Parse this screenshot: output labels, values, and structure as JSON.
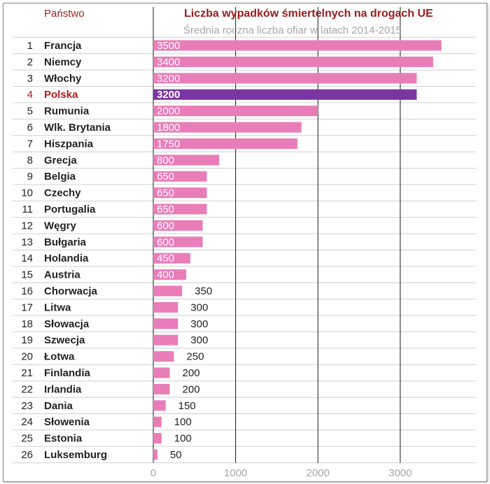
{
  "header": {
    "country_column": "Państwo"
  },
  "colors": {
    "bar": "#e97db8",
    "highlight_bar": "#7b35a3",
    "highlight_text": "#b01c1c",
    "title": "#9b1a1a",
    "subtitle": "#a6a6a6",
    "grid": "#1a1a1a",
    "row_separator": "#d0d0d0"
  },
  "chart_data": {
    "type": "bar",
    "orientation": "horizontal",
    "title": "Liczba wypadków śmiertelnych na drogach UE",
    "subtitle": "Średnia roczna liczba ofiar w latach 2014-2015",
    "highlight": "Polska",
    "categories": [
      "Francja",
      "Niemcy",
      "Włochy",
      "Polska",
      "Rumunia",
      "Wlk. Brytania",
      "Hiszpania",
      "Grecja",
      "Belgia",
      "Czechy",
      "Portugalia",
      "Węgry",
      "Bułgaria",
      "Holandia",
      "Austria",
      "Chorwacja",
      "Litwa",
      "Słowacja",
      "Szwecja",
      "Łotwa",
      "Finlandia",
      "Irlandia",
      "Dania",
      "Słowenia",
      "Estonia",
      "Luksemburg"
    ],
    "ranks": [
      "1",
      "2",
      "3",
      "4",
      "5",
      "6",
      "7",
      "8",
      "9",
      "10",
      "11",
      "12",
      "13",
      "14",
      "15",
      "16",
      "17",
      "18",
      "19",
      "20",
      "21",
      "22",
      "23",
      "24",
      "25",
      "26"
    ],
    "values": [
      3500,
      3400,
      3200,
      3200,
      2000,
      1800,
      1750,
      800,
      650,
      650,
      650,
      600,
      600,
      450,
      400,
      350,
      300,
      300,
      300,
      250,
      200,
      200,
      150,
      100,
      100,
      50
    ],
    "value_labels": [
      "3500",
      "3400",
      "3200",
      "3200",
      "2000",
      "1800",
      "1750",
      "800",
      "650",
      "650",
      "650",
      "600",
      "600",
      "450",
      "400",
      "350",
      "300",
      "300",
      "300",
      "250",
      "200",
      "200",
      "150",
      "100",
      "100",
      "50"
    ],
    "x_ticks": [
      0,
      1000,
      2000,
      3000
    ],
    "x_tick_labels": [
      "0",
      "1000",
      "2000",
      "3000"
    ],
    "xlim": [
      0,
      3900
    ],
    "grid": true,
    "legend": "none"
  }
}
